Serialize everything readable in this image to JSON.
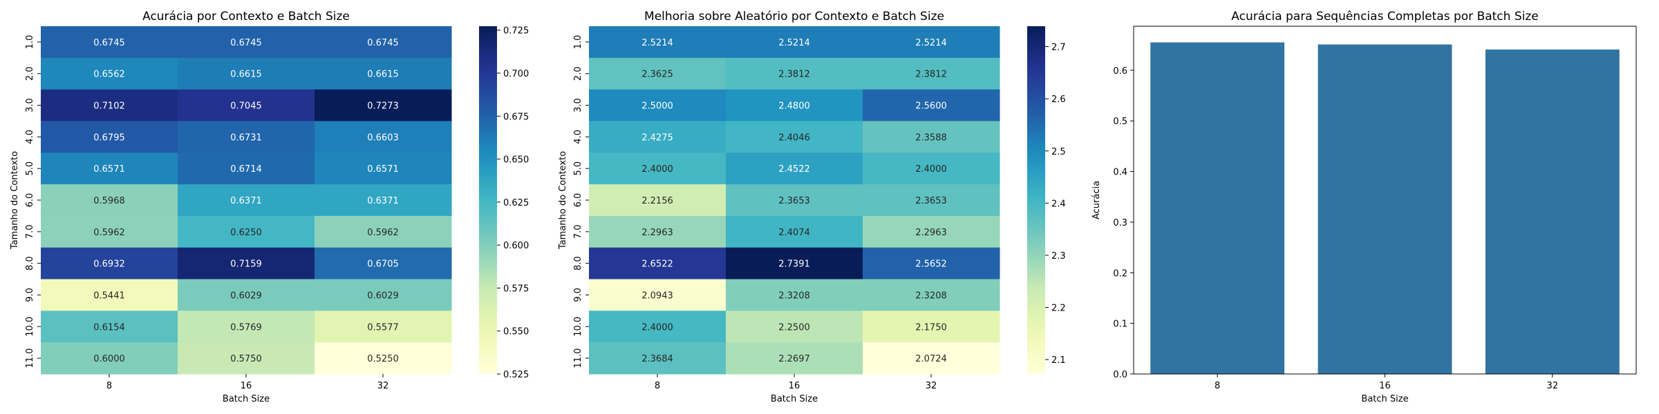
{
  "chart_data": [
    {
      "type": "heatmap",
      "title": "Acurácia por Contexto e Batch Size",
      "xlabel": "Batch Size",
      "ylabel": "Tamanho do Contexto",
      "x_categories": [
        "8",
        "16",
        "32"
      ],
      "y_categories": [
        "1.0",
        "2.0",
        "3.0",
        "4.0",
        "5.0",
        "6.0",
        "7.0",
        "8.0",
        "9.0",
        "10.0",
        "11.0"
      ],
      "values": [
        [
          0.6745,
          0.6745,
          0.6745
        ],
        [
          0.6562,
          0.6615,
          0.6615
        ],
        [
          0.7102,
          0.7045,
          0.7273
        ],
        [
          0.6795,
          0.6731,
          0.6603
        ],
        [
          0.6571,
          0.6714,
          0.6571
        ],
        [
          0.5968,
          0.6371,
          0.6371
        ],
        [
          0.5962,
          0.625,
          0.5962
        ],
        [
          0.6932,
          0.7159,
          0.6705
        ],
        [
          0.5441,
          0.6029,
          0.6029
        ],
        [
          0.6154,
          0.5769,
          0.5577
        ],
        [
          0.6,
          0.575,
          0.525
        ]
      ],
      "colormap": "YlGnBu",
      "colorbar": {
        "vmin": 0.525,
        "vmax": 0.7273,
        "ticks": [
          0.525,
          0.55,
          0.575,
          0.6,
          0.625,
          0.65,
          0.675,
          0.7,
          0.725
        ],
        "tick_labels": [
          "0.525",
          "0.550",
          "0.575",
          "0.600",
          "0.625",
          "0.650",
          "0.675",
          "0.700",
          "0.725"
        ]
      }
    },
    {
      "type": "heatmap",
      "title": "Melhoria sobre Aleatório por Contexto e Batch Size",
      "xlabel": "Batch Size",
      "ylabel": "Tamanho do Contexto",
      "x_categories": [
        "8",
        "16",
        "32"
      ],
      "y_categories": [
        "1.0",
        "2.0",
        "3.0",
        "4.0",
        "5.0",
        "6.0",
        "7.0",
        "8.0",
        "9.0",
        "10.0",
        "11.0"
      ],
      "values": [
        [
          2.5214,
          2.5214,
          2.5214
        ],
        [
          2.3625,
          2.3812,
          2.3812
        ],
        [
          2.5,
          2.48,
          2.56
        ],
        [
          2.4275,
          2.4046,
          2.3588
        ],
        [
          2.4,
          2.4522,
          2.4
        ],
        [
          2.2156,
          2.3653,
          2.3653
        ],
        [
          2.2963,
          2.4074,
          2.2963
        ],
        [
          2.6522,
          2.7391,
          2.5652
        ],
        [
          2.0943,
          2.3208,
          2.3208
        ],
        [
          2.4,
          2.25,
          2.175
        ],
        [
          2.3684,
          2.2697,
          2.0724
        ]
      ],
      "colormap": "YlGnBu",
      "colorbar": {
        "vmin": 2.0724,
        "vmax": 2.7391,
        "ticks": [
          2.1,
          2.2,
          2.3,
          2.4,
          2.5,
          2.6,
          2.7
        ],
        "tick_labels": [
          "2.1",
          "2.2",
          "2.3",
          "2.4",
          "2.5",
          "2.6",
          "2.7"
        ]
      }
    },
    {
      "type": "bar",
      "title": "Acurácia para Sequências Completas por Batch Size",
      "xlabel": "Batch Size",
      "ylabel": "Acurácia",
      "categories": [
        "8",
        "16",
        "32"
      ],
      "values": [
        0.655,
        0.651,
        0.641
      ],
      "ylim": [
        0,
        0.687
      ],
      "yticks": [
        0.0,
        0.1,
        0.2,
        0.3,
        0.4,
        0.5,
        0.6
      ],
      "ytick_labels": [
        "0.0",
        "0.1",
        "0.2",
        "0.3",
        "0.4",
        "0.5",
        "0.6"
      ],
      "bar_color": "#3274a1"
    }
  ]
}
